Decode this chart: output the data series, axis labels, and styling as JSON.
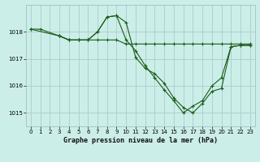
{
  "title": "Graphe pression niveau de la mer (hPa)",
  "background_color": "#cceee8",
  "grid_color": "#aacccc",
  "line_color": "#1a5c1a",
  "xlim": [
    -0.5,
    23.5
  ],
  "ylim": [
    1014.5,
    1019.0
  ],
  "yticks": [
    1015,
    1016,
    1017,
    1018
  ],
  "xticks": [
    0,
    1,
    2,
    3,
    4,
    5,
    6,
    7,
    8,
    9,
    10,
    11,
    12,
    13,
    14,
    15,
    16,
    17,
    18,
    19,
    20,
    21,
    22,
    23
  ],
  "series": [
    {
      "x": [
        0,
        1,
        3,
        4,
        5,
        6,
        7,
        8,
        9,
        10,
        11,
        12,
        13,
        14,
        15,
        16,
        17,
        18,
        19,
        20,
        21,
        22,
        23
      ],
      "y": [
        1018.1,
        1018.1,
        1017.85,
        1017.7,
        1017.7,
        1017.7,
        1018.0,
        1018.55,
        1018.6,
        1018.35,
        1017.05,
        1016.65,
        1016.45,
        1016.1,
        1015.55,
        1015.2,
        1015.0,
        1015.35,
        1015.8,
        1015.9,
        1017.45,
        1017.5,
        1017.5
      ]
    },
    {
      "x": [
        0,
        3,
        4,
        5,
        6,
        7,
        8,
        9,
        10,
        11,
        12,
        13,
        14,
        15,
        16,
        17,
        18,
        19,
        20,
        21,
        22,
        23
      ],
      "y": [
        1018.1,
        1017.85,
        1017.7,
        1017.7,
        1017.7,
        1017.7,
        1017.7,
        1017.7,
        1017.55,
        1017.55,
        1017.55,
        1017.55,
        1017.55,
        1017.55,
        1017.55,
        1017.55,
        1017.55,
        1017.55,
        1017.55,
        1017.55,
        1017.55,
        1017.55
      ]
    },
    {
      "x": [
        3,
        4,
        5,
        6,
        7,
        8,
        9,
        10,
        11,
        12,
        13,
        14,
        15,
        16,
        17,
        18,
        19,
        20,
        21,
        22,
        23
      ],
      "y": [
        1017.85,
        1017.7,
        1017.7,
        1017.7,
        1018.0,
        1018.55,
        1018.6,
        1017.7,
        1017.3,
        1016.75,
        1016.3,
        1015.85,
        1015.45,
        1015.0,
        1015.25,
        1015.45,
        1016.0,
        1016.3,
        1017.45,
        1017.5,
        1017.5
      ]
    }
  ]
}
